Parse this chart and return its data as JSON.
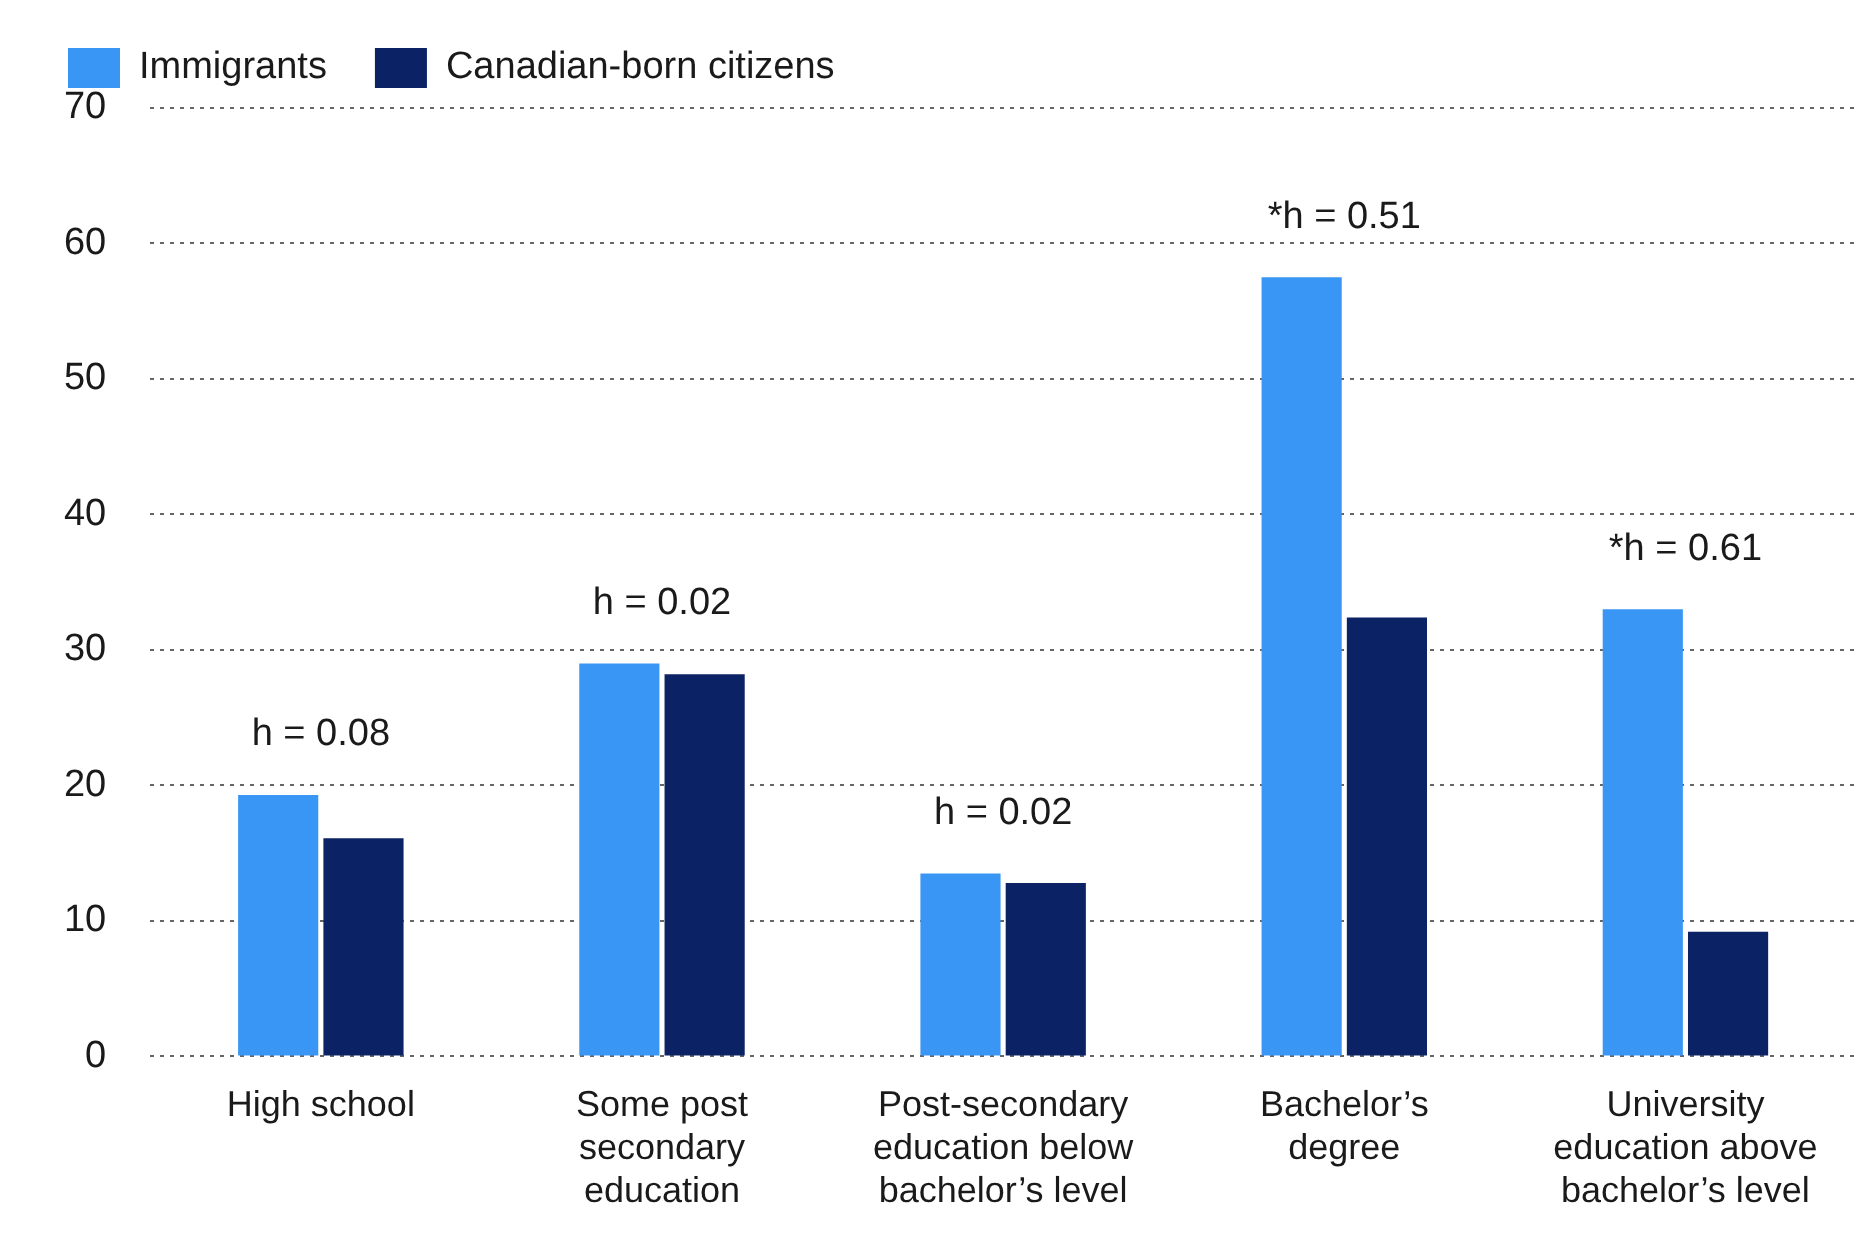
{
  "chart_data": {
    "type": "bar",
    "categories": [
      "High school",
      "Some post secondary education",
      "Post-secondary education below bachelor’s level",
      "Bachelor’s degree",
      "University education above bachelor’s level"
    ],
    "series": [
      {
        "name": "Immigrants",
        "color": "#3a96f4",
        "values": [
          19.3,
          29.0,
          13.5,
          57.5,
          33.0
        ]
      },
      {
        "name": "Canadian-born citizens",
        "color": "#0b2265",
        "values": [
          16.1,
          28.2,
          12.8,
          32.4,
          9.2
        ]
      }
    ],
    "ylim": [
      0,
      70
    ],
    "yticks": [
      0,
      10,
      20,
      30,
      40,
      50,
      60,
      70
    ],
    "grid": "y",
    "legend": "top left",
    "annotations": [
      "h = 0.08",
      "h = 0.02",
      "h = 0.02",
      "*h = 0.51",
      "*h = 0.61"
    ]
  }
}
